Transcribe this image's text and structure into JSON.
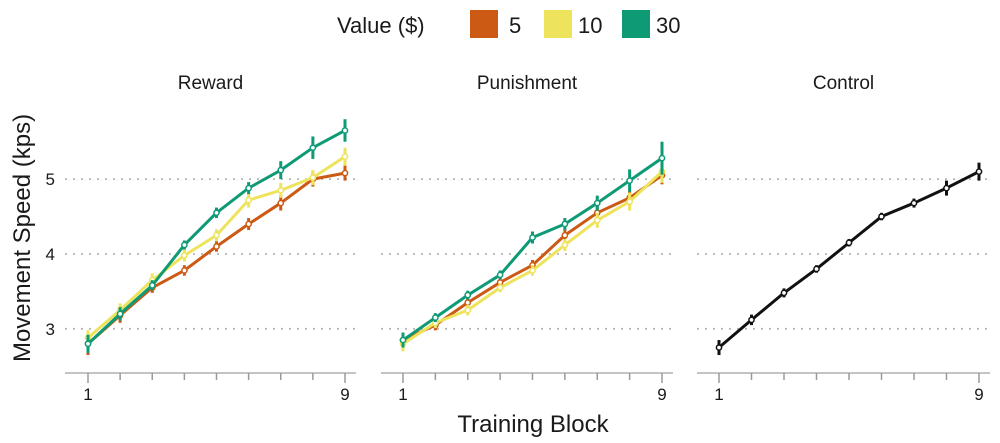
{
  "chart_data": {
    "type": "line",
    "legend": {
      "title": "Value ($)",
      "position": "top",
      "items": [
        {
          "label": "5",
          "color": "#cc5a14"
        },
        {
          "label": "10",
          "color": "#eee35c"
        },
        {
          "label": "30",
          "color": "#0e9a75"
        }
      ]
    },
    "xlabel": "Training Block",
    "ylabel": "Movement Speed (kps)",
    "xlim": [
      1,
      9
    ],
    "ylim": [
      2.45,
      5.95
    ],
    "x_ticks": [
      1,
      9
    ],
    "y_ticks": [
      3,
      4,
      5
    ],
    "x": [
      1,
      2,
      3,
      4,
      5,
      6,
      7,
      8,
      9
    ],
    "grid": "horizontal dotted",
    "panels": [
      {
        "title": "Reward",
        "series": [
          {
            "name": "5",
            "color": "#cc5a14",
            "values": [
              2.8,
              3.18,
              3.55,
              3.78,
              4.1,
              4.4,
              4.68,
              5.0,
              5.08
            ],
            "errors": [
              0.15,
              0.1,
              0.07,
              0.07,
              0.07,
              0.08,
              0.1,
              0.1,
              0.1
            ]
          },
          {
            "name": "10",
            "color": "#eee35c",
            "values": [
              2.88,
              3.25,
              3.65,
              3.98,
              4.25,
              4.72,
              4.85,
              5.02,
              5.3
            ],
            "errors": [
              0.1,
              0.09,
              0.09,
              0.08,
              0.08,
              0.1,
              0.1,
              0.1,
              0.12
            ]
          },
          {
            "name": "30",
            "color": "#0e9a75",
            "values": [
              2.8,
              3.2,
              3.58,
              4.12,
              4.55,
              4.88,
              5.12,
              5.42,
              5.65
            ],
            "errors": [
              0.12,
              0.09,
              0.07,
              0.06,
              0.07,
              0.08,
              0.12,
              0.15,
              0.15
            ]
          }
        ]
      },
      {
        "title": "Punishment",
        "series": [
          {
            "name": "5",
            "color": "#cc5a14",
            "values": [
              2.85,
              3.05,
              3.35,
              3.62,
              3.85,
              4.25,
              4.55,
              4.75,
              5.05
            ],
            "errors": [
              0.1,
              0.07,
              0.07,
              0.06,
              0.07,
              0.08,
              0.1,
              0.1,
              0.12
            ]
          },
          {
            "name": "10",
            "color": "#eee35c",
            "values": [
              2.8,
              3.08,
              3.25,
              3.55,
              3.78,
              4.12,
              4.45,
              4.7,
              5.1
            ],
            "errors": [
              0.1,
              0.07,
              0.07,
              0.06,
              0.07,
              0.08,
              0.1,
              0.12,
              0.15
            ]
          },
          {
            "name": "30",
            "color": "#0e9a75",
            "values": [
              2.85,
              3.15,
              3.45,
              3.72,
              4.22,
              4.4,
              4.68,
              4.98,
              5.28
            ],
            "errors": [
              0.1,
              0.06,
              0.06,
              0.06,
              0.08,
              0.08,
              0.1,
              0.15,
              0.22
            ]
          }
        ]
      },
      {
        "title": "Control",
        "series": [
          {
            "name": "Control",
            "color": "#111111",
            "values": [
              2.75,
              3.12,
              3.48,
              3.8,
              4.15,
              4.5,
              4.68,
              4.88,
              5.1
            ],
            "errors": [
              0.1,
              0.07,
              0.06,
              0.05,
              0.05,
              0.05,
              0.06,
              0.1,
              0.12
            ]
          }
        ]
      }
    ]
  }
}
